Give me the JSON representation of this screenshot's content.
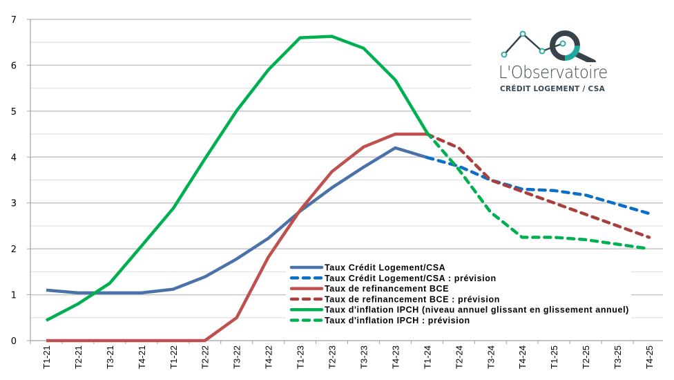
{
  "logo": {
    "title": "L'Observatoire",
    "subtitle": "CRÉDIT LOGEMENT / CSA",
    "colors": {
      "dark": "#37424a",
      "teal": "#1fa99e"
    }
  },
  "chart_data": {
    "type": "line",
    "title": "",
    "xlabel": "",
    "ylabel": "",
    "ylim": [
      0,
      7
    ],
    "yticks": [
      "0",
      "1",
      "2",
      "3",
      "4",
      "5",
      "6",
      "7"
    ],
    "grid": {
      "major": true,
      "minor_half_steps": true
    },
    "legend_position": "bottom-center",
    "categories": [
      "T1-21",
      "T2-21",
      "T3-21",
      "T4-21",
      "T1-22",
      "T2-22",
      "T3-22",
      "T4-22",
      "T1-23",
      "T2-23",
      "T3-23",
      "T4-23",
      "T1-24",
      "T2-24",
      "T3-24",
      "T4-24",
      "T1-25",
      "T2-25",
      "T3-25",
      "T4-25"
    ],
    "series": [
      {
        "name": "Taux Crédit Logement/CSA",
        "color": "#4a72a8",
        "dashed": false,
        "values": [
          1.1,
          1.04,
          1.04,
          1.04,
          1.12,
          1.39,
          1.78,
          2.23,
          2.82,
          3.33,
          3.78,
          4.2,
          3.99,
          null,
          null,
          null,
          null,
          null,
          null,
          null
        ]
      },
      {
        "name": "Taux Crédit Logement/CSA : prévision",
        "color": "#0a70c6",
        "dashed": true,
        "values": [
          null,
          null,
          null,
          null,
          null,
          null,
          null,
          null,
          null,
          null,
          null,
          null,
          3.99,
          3.8,
          3.5,
          3.3,
          3.27,
          3.17,
          2.97,
          2.77
        ]
      },
      {
        "name": "Taux de refinancement BCE",
        "color": "#c0504d",
        "dashed": false,
        "values": [
          0,
          0,
          0,
          0,
          0,
          0,
          0.5,
          1.82,
          2.84,
          3.68,
          4.22,
          4.5,
          4.5,
          null,
          null,
          null,
          null,
          null,
          null,
          null
        ]
      },
      {
        "name": "Taux de refinancement BCE : prévision",
        "color": "#a83f3c",
        "dashed": true,
        "values": [
          null,
          null,
          null,
          null,
          null,
          null,
          null,
          null,
          null,
          null,
          null,
          null,
          4.5,
          4.2,
          3.5,
          3.25,
          3.0,
          2.75,
          2.5,
          2.25
        ]
      },
      {
        "name": "Taux d'inflation IPCH (niveau annuel glissant en glissement annuel)",
        "color": "#00b050",
        "dashed": false,
        "values": [
          0.44,
          0.8,
          1.25,
          2.06,
          2.88,
          3.96,
          5.01,
          5.9,
          6.6,
          6.63,
          6.37,
          5.68,
          4.53,
          null,
          null,
          null,
          null,
          null,
          null,
          null
        ]
      },
      {
        "name": "Taux d'inflation IPCH : prévision",
        "color": "#00b050",
        "dashed": true,
        "values": [
          null,
          null,
          null,
          null,
          null,
          null,
          null,
          null,
          null,
          null,
          null,
          null,
          4.53,
          3.73,
          2.8,
          2.25,
          2.25,
          2.2,
          2.1,
          2.0
        ]
      }
    ]
  }
}
